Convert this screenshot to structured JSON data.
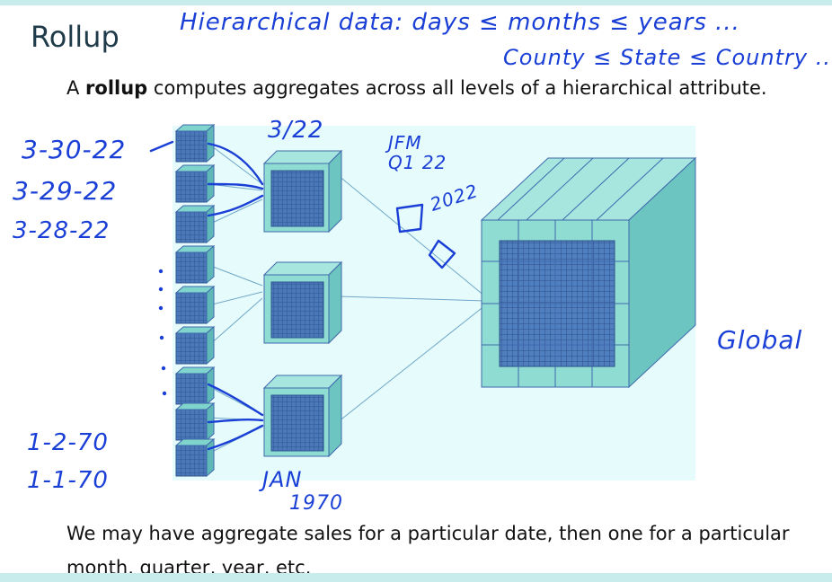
{
  "slide": {
    "title": "Rollup",
    "intro_pre": "A ",
    "intro_bold": "rollup",
    "intro_post": " computes aggregates across all levels of a hierarchical attribute.",
    "caption_line1": "We may have aggregate sales for a particular date, then one for a particular",
    "caption_line2": "month, quarter, year, etc."
  },
  "handwriting": {
    "hierarchy_line1": "Hierarchical data: days ≤ months ≤ years ...",
    "hierarchy_line2": "County ≤ State ≤ Country ...",
    "date_top1": "3-30-22",
    "date_top2": "3-29-22",
    "date_top3": "3-28-22",
    "date_bottom1": "1-2-70",
    "date_bottom2": "1-1-70",
    "month_top": "3/22",
    "quarter": "JFM Q1 22",
    "year": "2022",
    "month_bottom_line1": "JAN",
    "month_bottom_line2": "1970",
    "global": "Global"
  },
  "colors": {
    "background_panel": "#e6fbfb",
    "cube_face": "#7fd4cc",
    "cube_grid": "#3f69ad",
    "ink": "#1a3fd6",
    "accent_bar": "#c8ecec"
  }
}
